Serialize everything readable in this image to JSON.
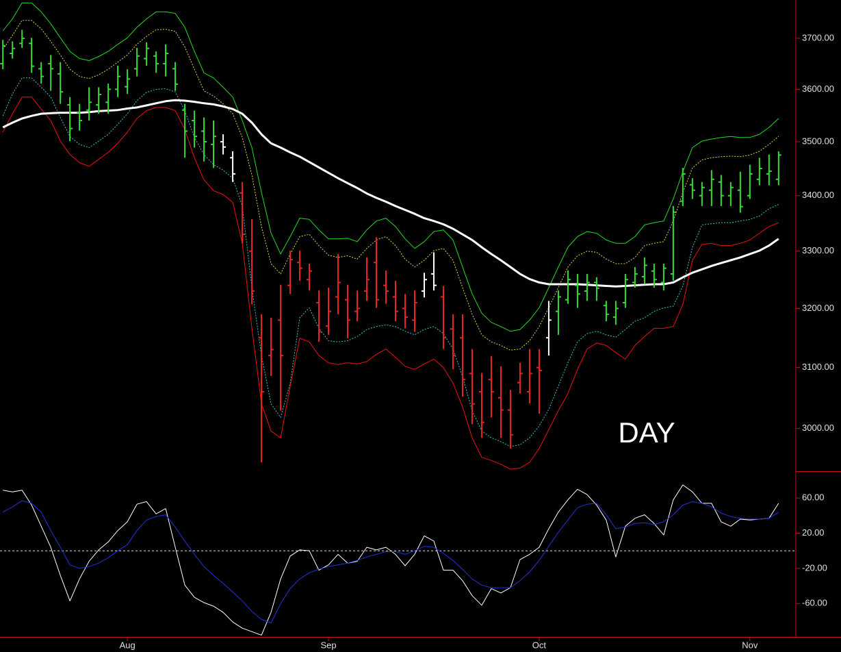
{
  "chart_data": [
    {
      "type": "ohlc",
      "log": true,
      "ylim": [
        2932,
        3777
      ],
      "xlim": [
        -0.3,
        82.8
      ],
      "yticks": [
        {
          "value": 3000,
          "label": "3000.00"
        },
        {
          "value": 3100,
          "label": "3100.00"
        },
        {
          "value": 3200,
          "label": "3200.00"
        },
        {
          "value": 3300,
          "label": "3300.00"
        },
        {
          "value": 3400,
          "label": "3400.00"
        },
        {
          "value": 3500,
          "label": "3500.00"
        },
        {
          "value": 3600,
          "label": "3600.00"
        },
        {
          "value": 3700,
          "label": "3700.00"
        }
      ],
      "annotation": "DAY",
      "open": [
        3650,
        3670,
        3690,
        3690,
        3640,
        3650,
        3630,
        3570,
        3555,
        3560,
        3570,
        3575,
        3600,
        3605,
        3640,
        3660,
        3665,
        3650,
        3640,
        3560,
        3540,
        3520,
        3495,
        3500,
        3470,
        3405,
        3300,
        3150,
        3120,
        3180,
        3240,
        3280,
        3250,
        3210,
        3170,
        3220,
        3215,
        3195,
        3230,
        3280,
        3240,
        3220,
        3200,
        3180,
        3230,
        3260,
        3220,
        3165,
        3150,
        3090,
        3060,
        3080,
        3050,
        3030,
        3075,
        3060,
        3100,
        3150,
        3195,
        3215,
        3240,
        3230,
        3245,
        3205,
        3185,
        3210,
        3245,
        3255,
        3265,
        3245,
        3260,
        3390,
        3420,
        3400,
        3410,
        3425,
        3400,
        3410,
        3400,
        3430,
        3440,
        3430
      ],
      "high": [
        3697,
        3694,
        3717,
        3701,
        3653,
        3667,
        3653,
        3585,
        3572,
        3604,
        3604,
        3611,
        3646,
        3639,
        3681,
        3692,
        3674,
        3688,
        3653,
        3572,
        3559,
        3546,
        3540,
        3514,
        3482,
        3425,
        3357,
        3190,
        3184,
        3241,
        3301,
        3301,
        3278,
        3231,
        3236,
        3295,
        3241,
        3231,
        3289,
        3325,
        3266,
        3248,
        3225,
        3231,
        3262,
        3298,
        3239,
        3190,
        3190,
        3131,
        3091,
        3119,
        3102,
        3063,
        3108,
        3131,
        3131,
        3213,
        3231,
        3266,
        3260,
        3260,
        3254,
        3213,
        3213,
        3260,
        3272,
        3289,
        3278,
        3278,
        3381,
        3451,
        3432,
        3425,
        3447,
        3438,
        3425,
        3444,
        3457,
        3470,
        3476,
        3482
      ],
      "low": [
        3639,
        3660,
        3681,
        3632,
        3611,
        3597,
        3572,
        3501,
        3521,
        3540,
        3553,
        3553,
        3585,
        3591,
        3625,
        3646,
        3632,
        3625,
        3597,
        3470,
        3489,
        3463,
        3451,
        3476,
        3425,
        3314,
        3207,
        2946,
        3086,
        3029,
        3225,
        3248,
        3231,
        3143,
        3155,
        3190,
        3149,
        3178,
        3213,
        3201,
        3208,
        3178,
        3166,
        3160,
        3219,
        3231,
        3131,
        3097,
        3052,
        3007,
        2985,
        3018,
        2985,
        2968,
        3057,
        3041,
        3024,
        3120,
        3155,
        3208,
        3201,
        3213,
        3213,
        3178,
        3172,
        3201,
        3236,
        3242,
        3236,
        3231,
        3248,
        3381,
        3394,
        3381,
        3381,
        3381,
        3381,
        3369,
        3394,
        3419,
        3419,
        3419
      ],
      "close": [
        3685,
        3680,
        3700,
        3645,
        3625,
        3640,
        3595,
        3525,
        3540,
        3575,
        3590,
        3600,
        3625,
        3620,
        3665,
        3680,
        3650,
        3670,
        3610,
        3520,
        3510,
        3500,
        3510,
        3490,
        3440,
        3330,
        3230,
        3060,
        3130,
        3120,
        3285,
        3270,
        3265,
        3160,
        3195,
        3245,
        3180,
        3200,
        3250,
        3215,
        3230,
        3195,
        3185,
        3210,
        3250,
        3240,
        3150,
        3120,
        3080,
        3040,
        3010,
        3060,
        3030,
        2990,
        3090,
        3090,
        3095,
        3180,
        3220,
        3250,
        3225,
        3245,
        3235,
        3190,
        3200,
        3250,
        3260,
        3275,
        3250,
        3270,
        3370,
        3440,
        3410,
        3415,
        3430,
        3400,
        3415,
        3380,
        3440,
        3450,
        3445,
        3475
      ],
      "colors": [
        "#33dd33",
        "#33dd33",
        "#33dd33",
        "#33dd33",
        "#33dd33",
        "#33dd33",
        "#33dd33",
        "#33dd33",
        "#33dd33",
        "#33dd33",
        "#33dd33",
        "#33dd33",
        "#33dd33",
        "#33dd33",
        "#33dd33",
        "#33dd33",
        "#33dd33",
        "#33dd33",
        "#33dd33",
        "#33dd33",
        "#33dd33",
        "#33dd33",
        "#33dd33",
        "#ffffff",
        "#ffffff",
        "#ee2222",
        "#ee2222",
        "#ee2222",
        "#ee2222",
        "#ee2222",
        "#ee2222",
        "#ee2222",
        "#ee2222",
        "#ee2222",
        "#ee2222",
        "#ee2222",
        "#ee2222",
        "#ee2222",
        "#ee2222",
        "#ee2222",
        "#ee2222",
        "#ee2222",
        "#ee2222",
        "#ee2222",
        "#ffffff",
        "#ffffff",
        "#ee2222",
        "#ee2222",
        "#ee2222",
        "#ee2222",
        "#ee2222",
        "#ee2222",
        "#ee2222",
        "#ee2222",
        "#ee2222",
        "#ee2222",
        "#ee2222",
        "#ffffff",
        "#33dd33",
        "#33dd33",
        "#33dd33",
        "#33dd33",
        "#33dd33",
        "#33dd33",
        "#33dd33",
        "#33dd33",
        "#33dd33",
        "#33dd33",
        "#33dd33",
        "#33dd33",
        "#33dd33",
        "#33dd33",
        "#33dd33",
        "#33dd33",
        "#33dd33",
        "#33dd33",
        "#33dd33",
        "#33dd33",
        "#33dd33",
        "#33dd33",
        "#33dd33",
        "#33dd33"
      ],
      "series": [
        {
          "color": "#22dd22",
          "values": [
            3715,
            3739,
            3771,
            3771,
            3753,
            3729,
            3701,
            3674,
            3660,
            3656,
            3664,
            3674,
            3688,
            3701,
            3722,
            3739,
            3753,
            3753,
            3750,
            3722,
            3674,
            3632,
            3622,
            3604,
            3585,
            3540,
            3489,
            3406,
            3332,
            3295,
            3326,
            3359,
            3357,
            3338,
            3322,
            3322,
            3323,
            3317,
            3338,
            3354,
            3359,
            3344,
            3322,
            3305,
            3317,
            3335,
            3338,
            3320,
            3272,
            3225,
            3192,
            3176,
            3169,
            3161,
            3164,
            3180,
            3201,
            3236,
            3272,
            3307,
            3326,
            3335,
            3332,
            3320,
            3314,
            3314,
            3326,
            3347,
            3351,
            3354,
            3394,
            3444,
            3489,
            3501,
            3505,
            3508,
            3510,
            3508,
            3508,
            3514,
            3527,
            3544
          ]
        },
        {
          "color": "#dddd44",
          "dash": true,
          "values": [
            3678,
            3706,
            3736,
            3736,
            3719,
            3694,
            3667,
            3639,
            3625,
            3621,
            3628,
            3639,
            3653,
            3667,
            3688,
            3704,
            3717,
            3718,
            3714,
            3683,
            3639,
            3597,
            3587,
            3572,
            3553,
            3508,
            3438,
            3344,
            3278,
            3260,
            3295,
            3326,
            3330,
            3310,
            3293,
            3289,
            3292,
            3286,
            3305,
            3320,
            3326,
            3310,
            3286,
            3272,
            3284,
            3301,
            3305,
            3284,
            3236,
            3190,
            3155,
            3143,
            3137,
            3129,
            3131,
            3145,
            3169,
            3201,
            3236,
            3272,
            3292,
            3300,
            3298,
            3286,
            3278,
            3278,
            3289,
            3310,
            3314,
            3317,
            3354,
            3406,
            3451,
            3466,
            3470,
            3472,
            3473,
            3472,
            3475,
            3482,
            3495,
            3510
          ]
        },
        {
          "color": "#33cccc",
          "dash": true,
          "values": [
            3549,
            3591,
            3622,
            3622,
            3604,
            3585,
            3546,
            3510,
            3495,
            3489,
            3501,
            3514,
            3533,
            3553,
            3578,
            3594,
            3600,
            3601,
            3595,
            3559,
            3508,
            3476,
            3457,
            3447,
            3432,
            3381,
            3236,
            3120,
            3040,
            3018,
            3074,
            3184,
            3201,
            3166,
            3145,
            3143,
            3145,
            3152,
            3164,
            3169,
            3172,
            3169,
            3161,
            3155,
            3164,
            3169,
            3157,
            3131,
            3085,
            3029,
            2996,
            2985,
            2979,
            2971,
            2974,
            2985,
            3004,
            3031,
            3069,
            3108,
            3143,
            3157,
            3161,
            3155,
            3151,
            3164,
            3178,
            3184,
            3195,
            3201,
            3204,
            3239,
            3307,
            3347,
            3349,
            3351,
            3351,
            3354,
            3357,
            3363,
            3376,
            3384
          ]
        },
        {
          "color": "#ee1111",
          "values": [
            3518,
            3553,
            3585,
            3585,
            3562,
            3540,
            3501,
            3476,
            3461,
            3454,
            3467,
            3480,
            3497,
            3518,
            3544,
            3559,
            3565,
            3565,
            3559,
            3523,
            3470,
            3429,
            3409,
            3402,
            3388,
            3314,
            3166,
            3040,
            2996,
            2985,
            3069,
            3149,
            3143,
            3120,
            3108,
            3105,
            3108,
            3106,
            3110,
            3122,
            3131,
            3117,
            3102,
            3097,
            3106,
            3114,
            3100,
            3074,
            3035,
            2985,
            2954,
            2949,
            2943,
            2935,
            2937,
            2946,
            2968,
            2998,
            3029,
            3057,
            3097,
            3131,
            3141,
            3137,
            3125,
            3114,
            3137,
            3152,
            3166,
            3166,
            3169,
            3207,
            3284,
            3312,
            3314,
            3310,
            3310,
            3314,
            3320,
            3332,
            3344,
            3351
          ]
        },
        {
          "color": "#ffffff",
          "width": 3,
          "values": [
            3527,
            3536,
            3544,
            3549,
            3553,
            3554,
            3555,
            3555,
            3555,
            3556,
            3558,
            3559,
            3560,
            3563,
            3565,
            3569,
            3573,
            3577,
            3579,
            3578,
            3576,
            3573,
            3571,
            3567,
            3562,
            3553,
            3536,
            3514,
            3497,
            3489,
            3480,
            3472,
            3462,
            3452,
            3442,
            3432,
            3423,
            3414,
            3404,
            3396,
            3389,
            3381,
            3374,
            3367,
            3359,
            3354,
            3348,
            3340,
            3330,
            3320,
            3307,
            3295,
            3284,
            3272,
            3260,
            3251,
            3245,
            3242,
            3242,
            3242,
            3242,
            3241,
            3240,
            3239,
            3238,
            3239,
            3240,
            3241,
            3242,
            3242,
            3245,
            3254,
            3262,
            3268,
            3274,
            3279,
            3284,
            3289,
            3295,
            3301,
            3310,
            3322
          ]
        }
      ]
    },
    {
      "type": "line",
      "ylim": [
        -98,
        89
      ],
      "xlim": [
        -0.3,
        82.8
      ],
      "hline": 0,
      "yticks": [
        {
          "value": -60,
          "label": "-60.00"
        },
        {
          "value": -20,
          "label": "-20.00"
        },
        {
          "value": 20,
          "label": "20.00"
        },
        {
          "value": 60,
          "label": "60.00"
        }
      ],
      "xticks": [
        {
          "value": 13,
          "label": "Aug"
        },
        {
          "value": 34,
          "label": "Sep"
        },
        {
          "value": 56,
          "label": "Oct"
        },
        {
          "value": 78,
          "label": "Nov"
        }
      ],
      "series": [
        {
          "color": "#ffffff",
          "values": [
            69,
            67,
            69,
            52,
            28,
            4,
            -28,
            -57,
            -32,
            -12,
            1,
            10,
            23,
            33,
            53,
            56,
            42,
            48,
            4,
            -39,
            -53,
            -59,
            -63,
            -70,
            -81,
            -88,
            -92,
            -96,
            -70,
            -32,
            -6,
            1,
            0,
            -22,
            -16,
            -4,
            -14,
            -12,
            4,
            1,
            4,
            -4,
            -17,
            -4,
            17,
            11,
            -22,
            -22,
            -34,
            -51,
            -62,
            -43,
            -48,
            -42,
            -10,
            -4,
            4,
            25,
            44,
            58,
            70,
            64,
            52,
            35,
            -7,
            28,
            37,
            41,
            31,
            18,
            58,
            75,
            67,
            54,
            54,
            33,
            28,
            36,
            35,
            36,
            37,
            54
          ]
        },
        {
          "color": "#2233dd",
          "values": [
            44,
            50,
            57,
            54,
            44,
            23,
            4,
            -16,
            -20,
            -18,
            -14,
            -8,
            0,
            7,
            23,
            35,
            39,
            41,
            27,
            11,
            -4,
            -18,
            -28,
            -37,
            -47,
            -57,
            -69,
            -78,
            -82,
            -60,
            -43,
            -32,
            -25,
            -21,
            -18,
            -16,
            -14,
            -11,
            -7,
            -4,
            -1,
            -1,
            -4,
            0,
            5,
            4,
            -3,
            -11,
            -21,
            -32,
            -39,
            -42,
            -42,
            -42,
            -34,
            -24,
            -11,
            5,
            21,
            35,
            49,
            53,
            54,
            41,
            25,
            27,
            31,
            32,
            30,
            33,
            41,
            52,
            56,
            54,
            50,
            43,
            39,
            37,
            36,
            36,
            37,
            44
          ]
        }
      ]
    }
  ]
}
